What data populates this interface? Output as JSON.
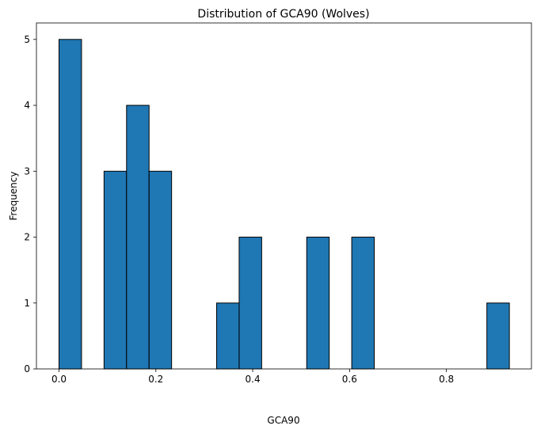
{
  "chart_data": {
    "type": "bar",
    "title": "Distribution of GCA90 (Wolves)",
    "xlabel": "GCA90",
    "ylabel": "Frequency",
    "xlim": [
      -0.0466,
      0.9756
    ],
    "ylim": [
      0,
      5.25
    ],
    "x_ticks": [
      0.0,
      0.2,
      0.4,
      0.6,
      0.8
    ],
    "x_tick_labels": [
      "0.0",
      "0.2",
      "0.4",
      "0.6",
      "0.8"
    ],
    "y_ticks": [
      0,
      1,
      2,
      3,
      4,
      5
    ],
    "y_tick_labels": [
      "0",
      "1",
      "2",
      "3",
      "4",
      "5"
    ],
    "bin_start": 0.0,
    "bin_width": 0.0465,
    "values": [
      5,
      0,
      3,
      4,
      3,
      0,
      0,
      1,
      2,
      0,
      0,
      2,
      0,
      2,
      0,
      0,
      0,
      0,
      0,
      1
    ],
    "grid": false,
    "bar_color": "#1f77b4",
    "edge_color": "#000000"
  }
}
